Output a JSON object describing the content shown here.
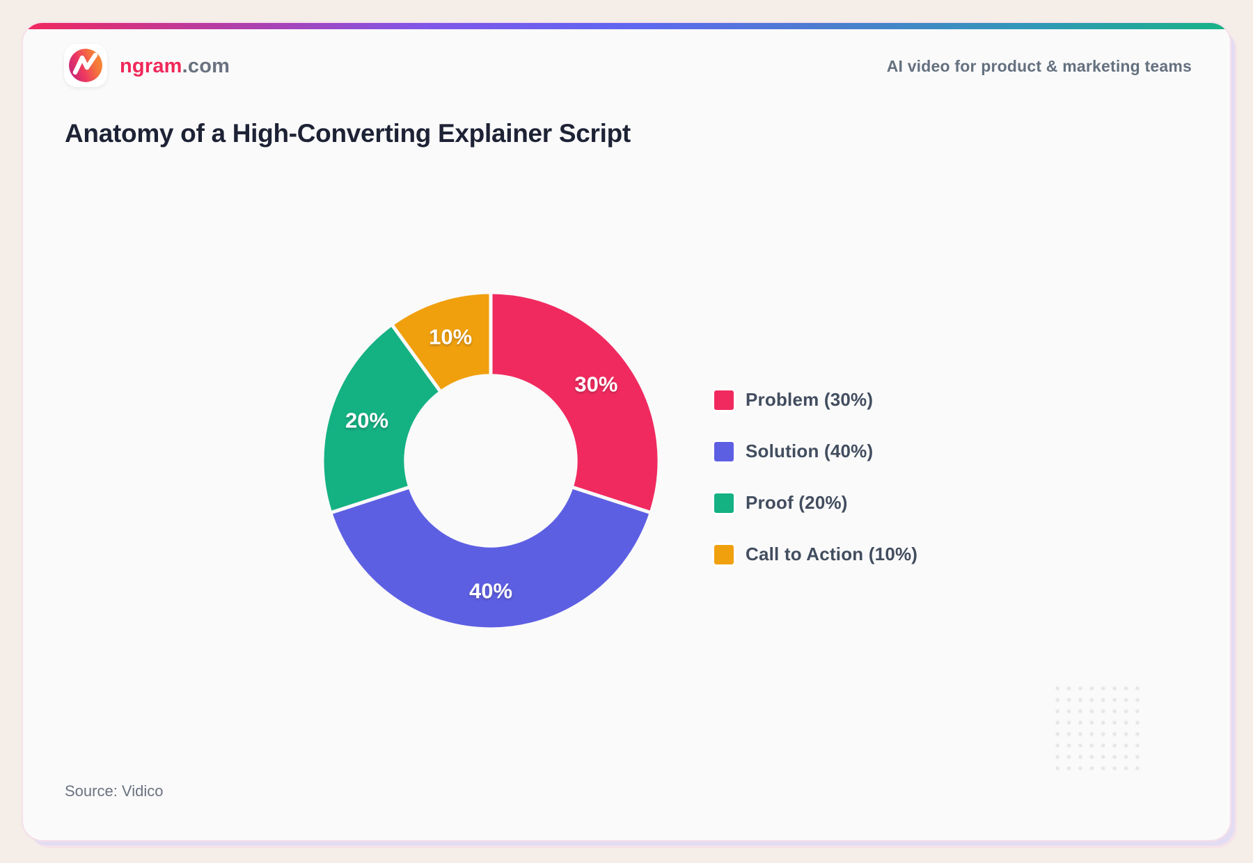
{
  "brand": {
    "name_primary": "ngram",
    "name_secondary": ".com",
    "tagline": "AI video for product & marketing teams",
    "logo_icon": "ngram-n-mark"
  },
  "title": "Anatomy of a High-Converting Explainer Script",
  "source": "Source: Vidico",
  "colors": {
    "page_background": "#F4EDE8",
    "card_background": "#FAFAFA",
    "title_text": "#1D2235",
    "muted_text": "#6B7280",
    "legend_text": "#424D5F",
    "brand_pink": "#F02858",
    "accent_bar_gradient": [
      "#F2275E",
      "#B43DA6",
      "#8156E8",
      "#5F66F0",
      "#4B7ECF",
      "#3197B8",
      "#17B385"
    ],
    "logo_gradient": [
      "#C52377",
      "#EE3A60",
      "#F4753C",
      "#F78A35"
    ]
  },
  "chart_data": {
    "type": "pie",
    "variant": "donut",
    "title": "Anatomy of a High-Converting Explainer Script",
    "categories": [
      "Problem",
      "Solution",
      "Proof",
      "Call to Action"
    ],
    "values": [
      30,
      40,
      20,
      10
    ],
    "unit": "%",
    "slice_labels": [
      "30%",
      "40%",
      "20%",
      "10%"
    ],
    "colors": [
      "#F02A5F",
      "#5D5FE3",
      "#14B183",
      "#F0A00D"
    ],
    "legend": [
      "Problem (30%)",
      "Solution (40%)",
      "Proof (20%)",
      "Call to Action (10%)"
    ],
    "legend_position": "right",
    "start_angle_deg": 0,
    "direction": "clockwise",
    "inner_radius_ratio": 0.505,
    "slice_separator_color": "#FAFAFA"
  }
}
